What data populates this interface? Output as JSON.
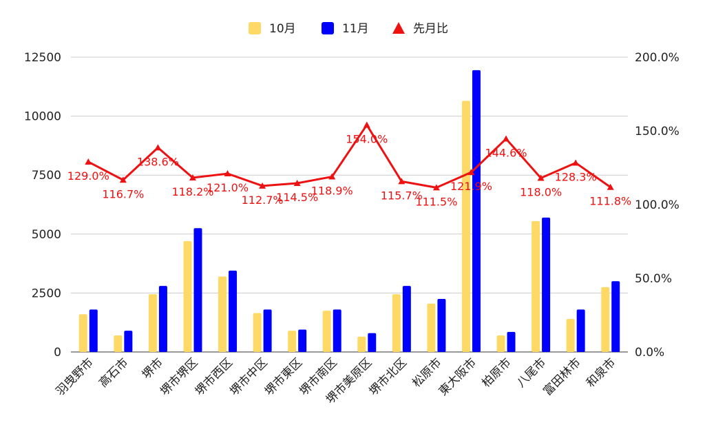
{
  "chart_data": {
    "type": "bar",
    "categories": [
      "羽曳野市",
      "高石市",
      "堺市",
      "堺市堺区",
      "堺市西区",
      "堺市中区",
      "堺市東区",
      "堺市南区",
      "堺市美原区",
      "堺市北区",
      "松原市",
      "東大阪市",
      "柏原市",
      "八尾市",
      "富田林市",
      "和泉市"
    ],
    "series": [
      {
        "name": "10月",
        "kind": "bar",
        "axis": "left",
        "color": "#ffd966",
        "values": [
          1600,
          700,
          2450,
          4700,
          3200,
          1650,
          900,
          1750,
          650,
          2450,
          2050,
          10650,
          700,
          5550,
          1400,
          2750
        ]
      },
      {
        "name": "11月",
        "kind": "bar",
        "axis": "left",
        "color": "#0000ff",
        "values": [
          1800,
          900,
          2800,
          5250,
          3450,
          1800,
          950,
          1800,
          800,
          2800,
          2250,
          11950,
          850,
          5700,
          1800,
          3000
        ]
      },
      {
        "name": "先月比",
        "kind": "line",
        "axis": "right",
        "color": "#ee1111",
        "values": [
          129.0,
          116.7,
          138.6,
          118.2,
          121.0,
          112.7,
          114.5,
          118.9,
          154.0,
          115.7,
          111.5,
          121.9,
          144.6,
          118.0,
          128.3,
          111.8
        ],
        "labels": [
          "129.0%",
          "116.7%",
          "138.6%",
          "118.2%",
          "121.0%",
          "112.7%",
          "114.5%",
          "118.9%",
          "154.0%",
          "115.7%",
          "111.5%",
          "121.9%",
          "144.6%",
          "118.0%",
          "128.3%",
          "111.8%"
        ]
      }
    ],
    "y_left": {
      "ylim": [
        0,
        12500
      ],
      "ticks": [
        "0",
        "2500",
        "5000",
        "7500",
        "10000",
        "12500"
      ]
    },
    "y_right": {
      "ylim": [
        0,
        200
      ],
      "ticks": [
        "0.0%",
        "50.0%",
        "100.0%",
        "150.0%",
        "200.0%"
      ]
    },
    "grid": true,
    "legend_position": "top"
  }
}
